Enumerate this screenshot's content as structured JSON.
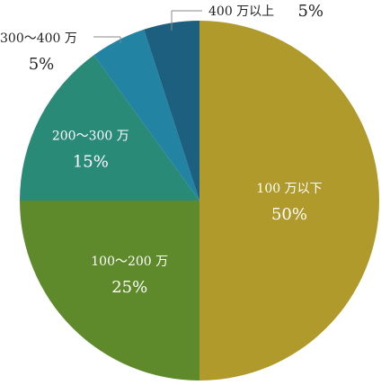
{
  "chart_data": {
    "type": "pie",
    "title": "",
    "start": "top",
    "direction": "clockwise",
    "slices": [
      {
        "label": "100 万以下",
        "value": 50,
        "pct_text": "50%",
        "color": "#b09a2c",
        "label_pos": "inside"
      },
      {
        "label": "100～200 万",
        "value": 25,
        "pct_text": "25%",
        "color": "#5e8a2c",
        "label_pos": "inside"
      },
      {
        "label": "200～300 万",
        "value": 15,
        "pct_text": "15%",
        "color": "#2a8a78",
        "label_pos": "inside"
      },
      {
        "label": "300～400 万",
        "value": 5,
        "pct_text": "5%",
        "color": "#2383a3",
        "label_pos": "outside-left"
      },
      {
        "label": "400 万以上",
        "value": 5,
        "pct_text": "5%",
        "color": "#1d5f7e",
        "label_pos": "outside-top"
      }
    ],
    "legend": "none"
  }
}
